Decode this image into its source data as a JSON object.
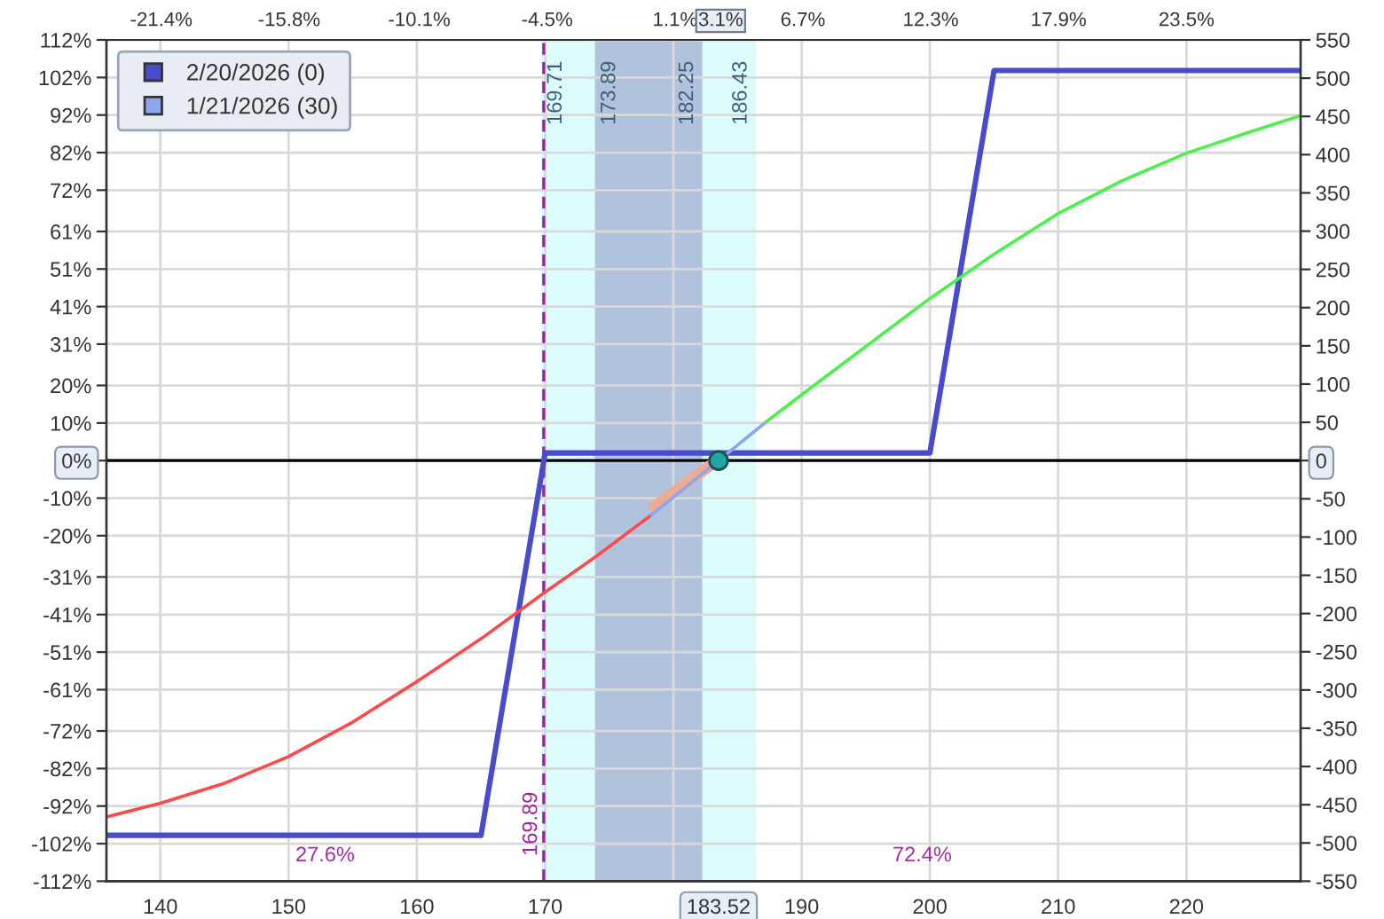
{
  "chart_data": {
    "type": "line",
    "xlim": [
      135.8,
      228.9
    ],
    "xticks": [
      140,
      150,
      160,
      170,
      {
        "value": 180,
        "label": null
      },
      {
        "value": 183.52,
        "label": "183.52"
      },
      190,
      200,
      210,
      220
    ],
    "x2lim": [
      -23.8,
      28.5
    ],
    "x2ticks": [
      {
        "value": -21.4,
        "label": "-21.4%"
      },
      {
        "value": -15.8,
        "label": "-15.8%"
      },
      {
        "value": -10.1,
        "label": "-10.1%"
      },
      {
        "value": -4.5,
        "label": "-4.5%"
      },
      {
        "value": 1.1,
        "label": "1.1%"
      },
      {
        "value": 3.1,
        "label": "3.1%"
      },
      {
        "value": 6.7,
        "label": "6.7%"
      },
      {
        "value": 12.3,
        "label": "12.3%"
      },
      {
        "value": 17.9,
        "label": "17.9%"
      },
      {
        "value": 23.5,
        "label": "23.5%"
      }
    ],
    "ylim": [
      -112,
      112
    ],
    "yticks": [
      {
        "value": 112,
        "label": "112%"
      },
      {
        "value": 102,
        "label": "102%"
      },
      {
        "value": 92,
        "label": "92%"
      },
      {
        "value": 82,
        "label": "82%"
      },
      {
        "value": 72,
        "label": "72%"
      },
      {
        "value": 61,
        "label": "61%"
      },
      {
        "value": 51,
        "label": "51%"
      },
      {
        "value": 41,
        "label": "41%"
      },
      {
        "value": 31,
        "label": "31%"
      },
      {
        "value": 20,
        "label": "20%"
      },
      {
        "value": 10,
        "label": "10%"
      },
      {
        "value": 0,
        "label": "0%"
      },
      {
        "value": -10,
        "label": "-10%"
      },
      {
        "value": -20,
        "label": "-20%"
      },
      {
        "value": -31,
        "label": "-31%"
      },
      {
        "value": -41,
        "label": "-41%"
      },
      {
        "value": -51,
        "label": "-51%"
      },
      {
        "value": -61,
        "label": "-61%"
      },
      {
        "value": -72,
        "label": "-72%"
      },
      {
        "value": -82,
        "label": "-82%"
      },
      {
        "value": -92,
        "label": "-92%"
      },
      {
        "value": -102,
        "label": "-102%"
      },
      {
        "value": -112,
        "label": "-112%"
      }
    ],
    "y2lim": [
      -550,
      550
    ],
    "y2ticks": [
      550,
      500,
      450,
      400,
      350,
      300,
      250,
      200,
      150,
      100,
      50,
      0,
      -50,
      -100,
      -150,
      -200,
      -250,
      -300,
      -350,
      -400,
      -450,
      -500,
      -550
    ],
    "grid": true,
    "legend": "top left",
    "bands": [
      {
        "axis": "x",
        "from": 169.71,
        "to": 186.43,
        "color": "#dcfcfc"
      },
      {
        "axis": "x",
        "from": 173.89,
        "to": 182.25,
        "color": "#b0c2dc"
      }
    ],
    "ref_lines": [
      {
        "axis": "x",
        "value": 169.89,
        "label": "169.89",
        "color": "#a020a0",
        "line_style": "dashed"
      },
      {
        "axis": "y2",
        "value": 0,
        "color": "#000000"
      }
    ],
    "annotations": [
      {
        "text": "169.71",
        "x": 169.71
      },
      {
        "text": "173.89",
        "x": 173.89
      },
      {
        "text": "182.25",
        "x": 182.25
      },
      {
        "text": "186.43",
        "x": 186.43
      },
      "27.6%",
      "72.4%"
    ],
    "series": [
      {
        "name": "2/20/2026 (0)",
        "color": "#4a4acc",
        "axis": "y2",
        "x": [
          135.8,
          165,
          170,
          200,
          205,
          228.9
        ],
        "values": [
          -490,
          -490,
          10,
          10,
          510,
          510
        ]
      },
      {
        "color": "#eeab94",
        "axis": "y2",
        "x": [
          178.5,
          182.9
        ],
        "values": [
          -60,
          -6
        ]
      },
      {
        "color": "#ff4a4a",
        "axis": "y2",
        "x": [
          135.8,
          140,
          145,
          150,
          155,
          160,
          165,
          170,
          174,
          178.3
        ],
        "values": [
          -466,
          -448,
          -422,
          -387,
          -342,
          -289,
          -233,
          -172,
          -125,
          -71
        ]
      },
      {
        "name": "1/21/2026 (30)",
        "color": "#8ea6ee",
        "axis": "y2",
        "x": [
          178.3,
          183.52,
          187.26
        ],
        "values": [
          -71,
          0,
          51
        ]
      },
      {
        "color": "#4cf04c",
        "axis": "y2",
        "x": [
          187.26,
          190,
          200,
          205,
          210,
          215,
          220,
          225,
          228.9
        ],
        "values": [
          51,
          86,
          212,
          270,
          323,
          366,
          402,
          430,
          451
        ]
      },
      {
        "type": "scatter",
        "color": "#1fa6a6",
        "axis": "y2",
        "x": [
          183.52
        ],
        "values": [
          0
        ]
      }
    ]
  }
}
